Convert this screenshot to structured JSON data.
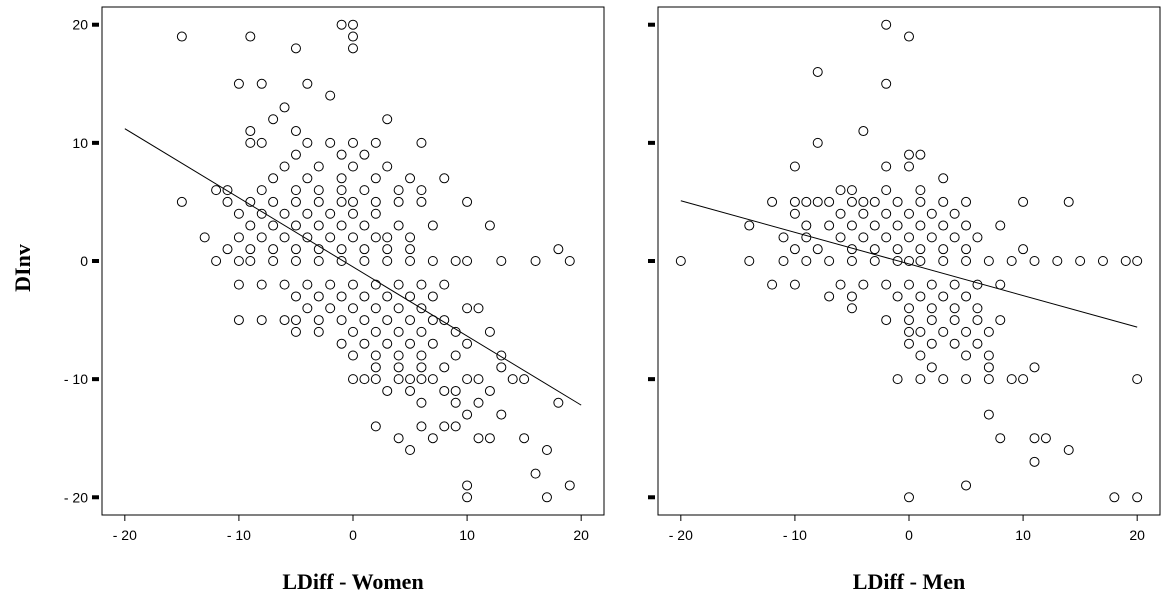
{
  "ylabel": "DInv",
  "chart_data": [
    {
      "type": "scatter",
      "xlabel": "LDiff - Women",
      "ylabel": "DInv",
      "xlim": [
        -22,
        22
      ],
      "ylim": [
        -21.5,
        21.5
      ],
      "xticks": [
        -20,
        -10,
        0,
        10,
        20
      ],
      "xtick_labels": [
        "- 20",
        "- 10",
        "0",
        "10",
        "20"
      ],
      "yticks": [
        20,
        10,
        0,
        -10,
        -20
      ],
      "ytick_labels": [
        "20",
        "10",
        "0",
        "- 10",
        "- 20"
      ],
      "grid": false,
      "marker": "open-circle",
      "fit_line": {
        "x": [
          -20,
          20
        ],
        "y": [
          11.2,
          -12.2
        ]
      },
      "points": [
        [
          -15,
          19
        ],
        [
          -9,
          19
        ],
        [
          -5,
          18
        ],
        [
          -1,
          20
        ],
        [
          0,
          20
        ],
        [
          0,
          19
        ],
        [
          0,
          18
        ],
        [
          -10,
          15
        ],
        [
          -8,
          15
        ],
        [
          -4,
          15
        ],
        [
          -2,
          14
        ],
        [
          -6,
          13
        ],
        [
          -7,
          12
        ],
        [
          -5,
          11
        ],
        [
          3,
          12
        ],
        [
          -9,
          11
        ],
        [
          -9,
          10
        ],
        [
          -8,
          10
        ],
        [
          -4,
          10
        ],
        [
          -2,
          10
        ],
        [
          0,
          10
        ],
        [
          2,
          10
        ],
        [
          6,
          10
        ],
        [
          -5,
          9
        ],
        [
          -1,
          9
        ],
        [
          1,
          9
        ],
        [
          -6,
          8
        ],
        [
          -3,
          8
        ],
        [
          0,
          8
        ],
        [
          3,
          8
        ],
        [
          -7,
          7
        ],
        [
          -4,
          7
        ],
        [
          -1,
          7
        ],
        [
          2,
          7
        ],
        [
          5,
          7
        ],
        [
          8,
          7
        ],
        [
          -11,
          6
        ],
        [
          -8,
          6
        ],
        [
          -5,
          6
        ],
        [
          -3,
          6
        ],
        [
          -1,
          6
        ],
        [
          1,
          6
        ],
        [
          4,
          6
        ],
        [
          6,
          6
        ],
        [
          -12,
          6
        ],
        [
          -15,
          5
        ],
        [
          -11,
          5
        ],
        [
          -9,
          5
        ],
        [
          -7,
          5
        ],
        [
          -5,
          5
        ],
        [
          -3,
          5
        ],
        [
          -1,
          5
        ],
        [
          0,
          5
        ],
        [
          2,
          5
        ],
        [
          4,
          5
        ],
        [
          6,
          5
        ],
        [
          10,
          5
        ],
        [
          -10,
          4
        ],
        [
          -8,
          4
        ],
        [
          -6,
          4
        ],
        [
          -4,
          4
        ],
        [
          -2,
          4
        ],
        [
          0,
          4
        ],
        [
          2,
          4
        ],
        [
          -9,
          3
        ],
        [
          -7,
          3
        ],
        [
          -5,
          3
        ],
        [
          -3,
          3
        ],
        [
          -1,
          3
        ],
        [
          1,
          3
        ],
        [
          4,
          3
        ],
        [
          7,
          3
        ],
        [
          12,
          3
        ],
        [
          -13,
          2
        ],
        [
          -10,
          2
        ],
        [
          -8,
          2
        ],
        [
          -6,
          2
        ],
        [
          -4,
          2
        ],
        [
          -2,
          2
        ],
        [
          0,
          2
        ],
        [
          2,
          2
        ],
        [
          3,
          2
        ],
        [
          5,
          2
        ],
        [
          -11,
          1
        ],
        [
          -9,
          1
        ],
        [
          -7,
          1
        ],
        [
          -5,
          1
        ],
        [
          -3,
          1
        ],
        [
          -1,
          1
        ],
        [
          1,
          1
        ],
        [
          3,
          1
        ],
        [
          5,
          1
        ],
        [
          18,
          1
        ],
        [
          -12,
          0
        ],
        [
          -10,
          0
        ],
        [
          -9,
          0
        ],
        [
          -7,
          0
        ],
        [
          -5,
          0
        ],
        [
          -3,
          0
        ],
        [
          -1,
          0
        ],
        [
          1,
          0
        ],
        [
          3,
          0
        ],
        [
          5,
          0
        ],
        [
          7,
          0
        ],
        [
          9,
          0
        ],
        [
          10,
          0
        ],
        [
          13,
          0
        ],
        [
          16,
          0
        ],
        [
          19,
          0
        ],
        [
          -10,
          -2
        ],
        [
          -8,
          -2
        ],
        [
          -6,
          -2
        ],
        [
          -4,
          -2
        ],
        [
          -2,
          -2
        ],
        [
          0,
          -2
        ],
        [
          2,
          -2
        ],
        [
          4,
          -2
        ],
        [
          6,
          -2
        ],
        [
          8,
          -2
        ],
        [
          -5,
          -3
        ],
        [
          -3,
          -3
        ],
        [
          -1,
          -3
        ],
        [
          1,
          -3
        ],
        [
          3,
          -3
        ],
        [
          5,
          -3
        ],
        [
          7,
          -3
        ],
        [
          -4,
          -4
        ],
        [
          -2,
          -4
        ],
        [
          0,
          -4
        ],
        [
          2,
          -4
        ],
        [
          4,
          -4
        ],
        [
          6,
          -4
        ],
        [
          10,
          -4
        ],
        [
          11,
          -4
        ],
        [
          -10,
          -5
        ],
        [
          -8,
          -5
        ],
        [
          -6,
          -5
        ],
        [
          -5,
          -5
        ],
        [
          -3,
          -5
        ],
        [
          -1,
          -5
        ],
        [
          1,
          -5
        ],
        [
          3,
          -5
        ],
        [
          5,
          -5
        ],
        [
          7,
          -5
        ],
        [
          8,
          -5
        ],
        [
          -5,
          -6
        ],
        [
          -3,
          -6
        ],
        [
          0,
          -6
        ],
        [
          2,
          -6
        ],
        [
          4,
          -6
        ],
        [
          6,
          -6
        ],
        [
          9,
          -6
        ],
        [
          12,
          -6
        ],
        [
          -1,
          -7
        ],
        [
          1,
          -7
        ],
        [
          3,
          -7
        ],
        [
          5,
          -7
        ],
        [
          7,
          -7
        ],
        [
          10,
          -7
        ],
        [
          0,
          -8
        ],
        [
          2,
          -8
        ],
        [
          4,
          -8
        ],
        [
          6,
          -8
        ],
        [
          9,
          -8
        ],
        [
          13,
          -8
        ],
        [
          2,
          -9
        ],
        [
          4,
          -9
        ],
        [
          6,
          -9
        ],
        [
          8,
          -9
        ],
        [
          13,
          -9
        ],
        [
          0,
          -10
        ],
        [
          1,
          -10
        ],
        [
          2,
          -10
        ],
        [
          4,
          -10
        ],
        [
          5,
          -10
        ],
        [
          6,
          -10
        ],
        [
          7,
          -10
        ],
        [
          10,
          -10
        ],
        [
          11,
          -10
        ],
        [
          14,
          -10
        ],
        [
          15,
          -10
        ],
        [
          3,
          -11
        ],
        [
          5,
          -11
        ],
        [
          8,
          -11
        ],
        [
          9,
          -11
        ],
        [
          12,
          -11
        ],
        [
          6,
          -12
        ],
        [
          9,
          -12
        ],
        [
          11,
          -12
        ],
        [
          18,
          -12
        ],
        [
          10,
          -13
        ],
        [
          13,
          -13
        ],
        [
          2,
          -14
        ],
        [
          6,
          -14
        ],
        [
          8,
          -14
        ],
        [
          9,
          -14
        ],
        [
          4,
          -15
        ],
        [
          7,
          -15
        ],
        [
          11,
          -15
        ],
        [
          12,
          -15
        ],
        [
          15,
          -15
        ],
        [
          5,
          -16
        ],
        [
          17,
          -16
        ],
        [
          10,
          -19
        ],
        [
          16,
          -18
        ],
        [
          19,
          -19
        ],
        [
          10,
          -20
        ],
        [
          17,
          -20
        ]
      ]
    },
    {
      "type": "scatter",
      "xlabel": "LDiff - Men",
      "ylabel": "DInv",
      "xlim": [
        -22,
        22
      ],
      "ylim": [
        -21.5,
        21.5
      ],
      "xticks": [
        -20,
        -10,
        0,
        10,
        20
      ],
      "xtick_labels": [
        "- 20",
        "- 10",
        "0",
        "10",
        "20"
      ],
      "yticks": [
        20,
        10,
        0,
        -10,
        -20
      ],
      "ytick_labels": [
        "20",
        "10",
        "0",
        "- 10",
        "- 20"
      ],
      "grid": false,
      "marker": "open-circle",
      "fit_line": {
        "x": [
          -20,
          20
        ],
        "y": [
          5.1,
          -5.6
        ]
      },
      "points": [
        [
          -2,
          20
        ],
        [
          0,
          19
        ],
        [
          -8,
          16
        ],
        [
          -2,
          15
        ],
        [
          -4,
          11
        ],
        [
          -8,
          10
        ],
        [
          -2,
          8
        ],
        [
          0,
          9
        ],
        [
          1,
          9
        ],
        [
          0,
          8
        ],
        [
          3,
          7
        ],
        [
          -10,
          8
        ],
        [
          -10,
          5
        ],
        [
          -8,
          5
        ],
        [
          -6,
          6
        ],
        [
          -5,
          6
        ],
        [
          -4,
          5
        ],
        [
          -2,
          6
        ],
        [
          1,
          6
        ],
        [
          -12,
          5
        ],
        [
          -9,
          5
        ],
        [
          -7,
          5
        ],
        [
          -5,
          5
        ],
        [
          -3,
          5
        ],
        [
          -1,
          5
        ],
        [
          1,
          5
        ],
        [
          3,
          5
        ],
        [
          5,
          5
        ],
        [
          10,
          5
        ],
        [
          14,
          5
        ],
        [
          -10,
          4
        ],
        [
          -6,
          4
        ],
        [
          -4,
          4
        ],
        [
          -2,
          4
        ],
        [
          0,
          4
        ],
        [
          2,
          4
        ],
        [
          4,
          4
        ],
        [
          -14,
          3
        ],
        [
          -9,
          3
        ],
        [
          -7,
          3
        ],
        [
          -5,
          3
        ],
        [
          -3,
          3
        ],
        [
          -1,
          3
        ],
        [
          1,
          3
        ],
        [
          3,
          3
        ],
        [
          5,
          3
        ],
        [
          8,
          3
        ],
        [
          -11,
          2
        ],
        [
          -9,
          2
        ],
        [
          -6,
          2
        ],
        [
          -4,
          2
        ],
        [
          -2,
          2
        ],
        [
          0,
          2
        ],
        [
          2,
          2
        ],
        [
          4,
          2
        ],
        [
          6,
          2
        ],
        [
          -10,
          1
        ],
        [
          -8,
          1
        ],
        [
          -5,
          1
        ],
        [
          -3,
          1
        ],
        [
          -1,
          1
        ],
        [
          1,
          1
        ],
        [
          3,
          1
        ],
        [
          5,
          1
        ],
        [
          10,
          1
        ],
        [
          -20,
          0
        ],
        [
          -14,
          0
        ],
        [
          -11,
          0
        ],
        [
          -9,
          0
        ],
        [
          -7,
          0
        ],
        [
          -5,
          0
        ],
        [
          -3,
          0
        ],
        [
          -1,
          0
        ],
        [
          0,
          0
        ],
        [
          1,
          0
        ],
        [
          3,
          0
        ],
        [
          5,
          0
        ],
        [
          7,
          0
        ],
        [
          9,
          0
        ],
        [
          11,
          0
        ],
        [
          13,
          0
        ],
        [
          15,
          0
        ],
        [
          17,
          0
        ],
        [
          19,
          0
        ],
        [
          20,
          0
        ],
        [
          -12,
          -2
        ],
        [
          -10,
          -2
        ],
        [
          -6,
          -2
        ],
        [
          -4,
          -2
        ],
        [
          -2,
          -2
        ],
        [
          0,
          -2
        ],
        [
          2,
          -2
        ],
        [
          4,
          -2
        ],
        [
          6,
          -2
        ],
        [
          8,
          -2
        ],
        [
          -7,
          -3
        ],
        [
          -5,
          -3
        ],
        [
          -1,
          -3
        ],
        [
          1,
          -3
        ],
        [
          3,
          -3
        ],
        [
          5,
          -3
        ],
        [
          -5,
          -4
        ],
        [
          0,
          -4
        ],
        [
          2,
          -4
        ],
        [
          4,
          -4
        ],
        [
          6,
          -4
        ],
        [
          -2,
          -5
        ],
        [
          0,
          -5
        ],
        [
          2,
          -5
        ],
        [
          4,
          -5
        ],
        [
          6,
          -5
        ],
        [
          8,
          -5
        ],
        [
          0,
          -6
        ],
        [
          1,
          -6
        ],
        [
          3,
          -6
        ],
        [
          5,
          -6
        ],
        [
          7,
          -6
        ],
        [
          0,
          -7
        ],
        [
          2,
          -7
        ],
        [
          4,
          -7
        ],
        [
          6,
          -7
        ],
        [
          1,
          -8
        ],
        [
          5,
          -8
        ],
        [
          7,
          -8
        ],
        [
          2,
          -9
        ],
        [
          7,
          -9
        ],
        [
          11,
          -9
        ],
        [
          -1,
          -10
        ],
        [
          1,
          -10
        ],
        [
          3,
          -10
        ],
        [
          5,
          -10
        ],
        [
          7,
          -10
        ],
        [
          9,
          -10
        ],
        [
          10,
          -10
        ],
        [
          20,
          -10
        ],
        [
          7,
          -13
        ],
        [
          8,
          -15
        ],
        [
          11,
          -15
        ],
        [
          12,
          -15
        ],
        [
          14,
          -16
        ],
        [
          11,
          -17
        ],
        [
          0,
          -20
        ],
        [
          5,
          -19
        ],
        [
          18,
          -20
        ],
        [
          20,
          -20
        ]
      ]
    }
  ]
}
